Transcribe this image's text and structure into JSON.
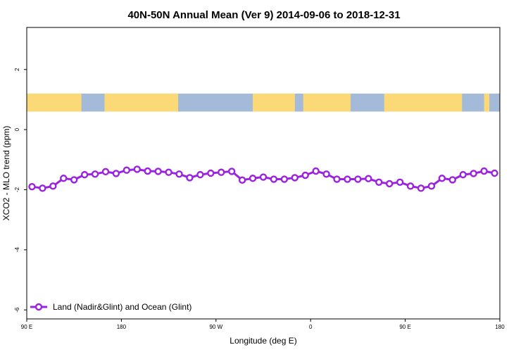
{
  "chart_data": {
    "type": "line",
    "title": "40N-50N Annual Mean (Ver 9)   2014-09-06 to 2018-12-31",
    "xlabel": "Longitude (deg E)",
    "ylabel": "XCO2 - MLO trend (ppm)",
    "x_ticks": [
      {
        "value": 90,
        "label": "90 E"
      },
      {
        "value": 180,
        "label": "180"
      },
      {
        "value": 270,
        "label": "90 W"
      },
      {
        "value": 360,
        "label": "0"
      },
      {
        "value": 450,
        "label": "90 E"
      },
      {
        "value": 540,
        "label": "180"
      }
    ],
    "y_ticks": [
      {
        "value": 2,
        "label": "2"
      },
      {
        "value": 0,
        "label": "0"
      },
      {
        "value": -2,
        "label": "-2"
      },
      {
        "value": -4,
        "label": "-4"
      },
      {
        "value": -6,
        "label": "-6"
      }
    ],
    "xlim": [
      90,
      540
    ],
    "ylim": [
      -6.3,
      3.4
    ],
    "grid": false,
    "legend_position": "bottom-left",
    "map_strip": {
      "y_range": [
        0.6,
        1.2
      ],
      "land_color": "#fcd977",
      "ocean_color": "#a4bad9",
      "land_segments": [
        [
          90,
          142
        ],
        [
          164,
          234
        ],
        [
          305,
          345
        ],
        [
          353,
          398
        ],
        [
          430,
          504
        ],
        [
          525,
          530
        ]
      ]
    },
    "series": [
      {
        "name": "Land (Nadir&Glint) and Ocean (Glint)",
        "color": "#9a22e0",
        "x": [
          95,
          105,
          115,
          125,
          135,
          145,
          155,
          165,
          175,
          185,
          195,
          205,
          215,
          225,
          235,
          245,
          255,
          265,
          275,
          285,
          295,
          305,
          315,
          325,
          335,
          345,
          355,
          365,
          375,
          385,
          395,
          405,
          415,
          425,
          435,
          445,
          455,
          465,
          475,
          485,
          495,
          505,
          515,
          525,
          535
        ],
        "y": [
          -1.9,
          -1.95,
          -1.88,
          -1.62,
          -1.67,
          -1.5,
          -1.48,
          -1.4,
          -1.46,
          -1.35,
          -1.32,
          -1.38,
          -1.39,
          -1.42,
          -1.48,
          -1.6,
          -1.5,
          -1.45,
          -1.42,
          -1.39,
          -1.68,
          -1.62,
          -1.58,
          -1.65,
          -1.65,
          -1.6,
          -1.52,
          -1.38,
          -1.48,
          -1.65,
          -1.65,
          -1.65,
          -1.63,
          -1.75,
          -1.8,
          -1.75,
          -1.88,
          -1.95,
          -1.88,
          -1.62,
          -1.67,
          -1.5,
          -1.46,
          -1.38,
          -1.45
        ]
      }
    ]
  }
}
